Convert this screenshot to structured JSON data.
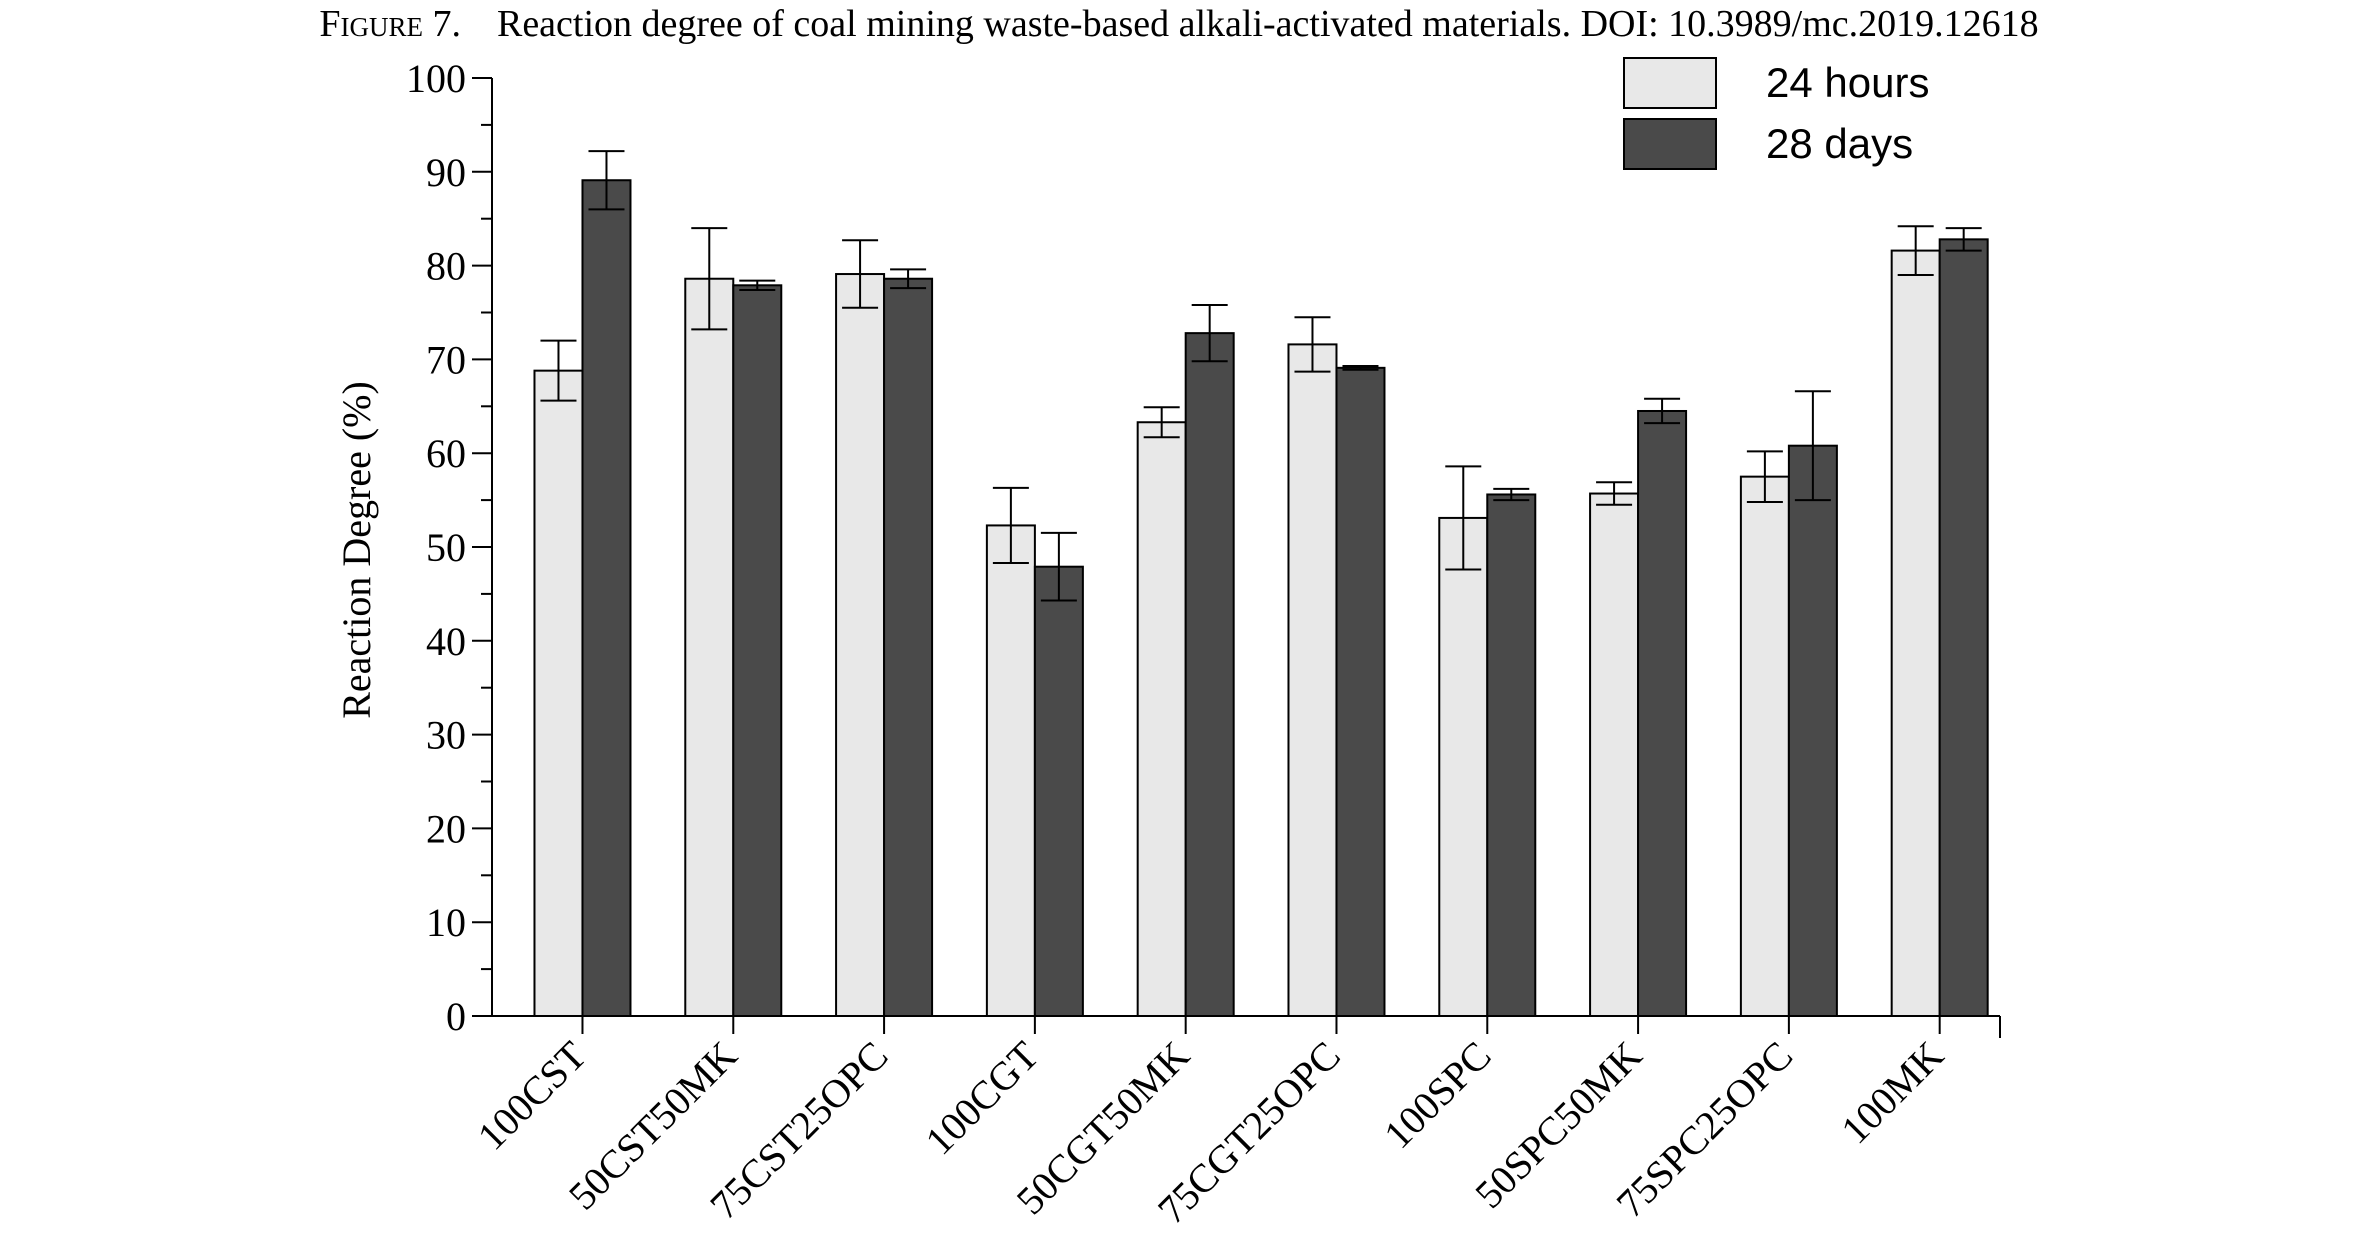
{
  "caption": {
    "figure_label": "Figure 7.",
    "text": "Reaction degree of coal mining waste-based alkali-activated materials. DOI: 10.3989/mc.2019.12618"
  },
  "chart_data": {
    "type": "bar",
    "title": "",
    "xlabel": "",
    "ylabel": "Reaction Degree (%)",
    "ylim": [
      0,
      100
    ],
    "yticks": [
      0,
      10,
      20,
      30,
      40,
      50,
      60,
      70,
      80,
      90,
      100
    ],
    "categories": [
      "100CST",
      "50CST50MK",
      "75CST25OPC",
      "100CGT",
      "50CGT50MK",
      "75CGT25OPC",
      "100SPC",
      "50SPC50MK",
      "75SPC25OPC",
      "100MK"
    ],
    "series": [
      {
        "name": "24 hours",
        "color": "#e8e8e8",
        "values": [
          68.8,
          78.6,
          79.1,
          52.3,
          63.3,
          71.6,
          53.1,
          55.7,
          57.5,
          81.6
        ],
        "errors": [
          3.2,
          5.4,
          3.6,
          4.0,
          1.6,
          2.9,
          5.5,
          1.2,
          2.7,
          2.6
        ]
      },
      {
        "name": "28 days",
        "color": "#4a4a4a",
        "values": [
          89.1,
          77.9,
          78.6,
          47.9,
          72.8,
          69.1,
          55.6,
          64.5,
          60.8,
          82.8
        ],
        "errors": [
          3.1,
          0.5,
          1.0,
          3.6,
          3.0,
          0.2,
          0.6,
          1.3,
          5.8,
          1.2
        ]
      }
    ],
    "legend_position": "top-right",
    "grid": false
  }
}
